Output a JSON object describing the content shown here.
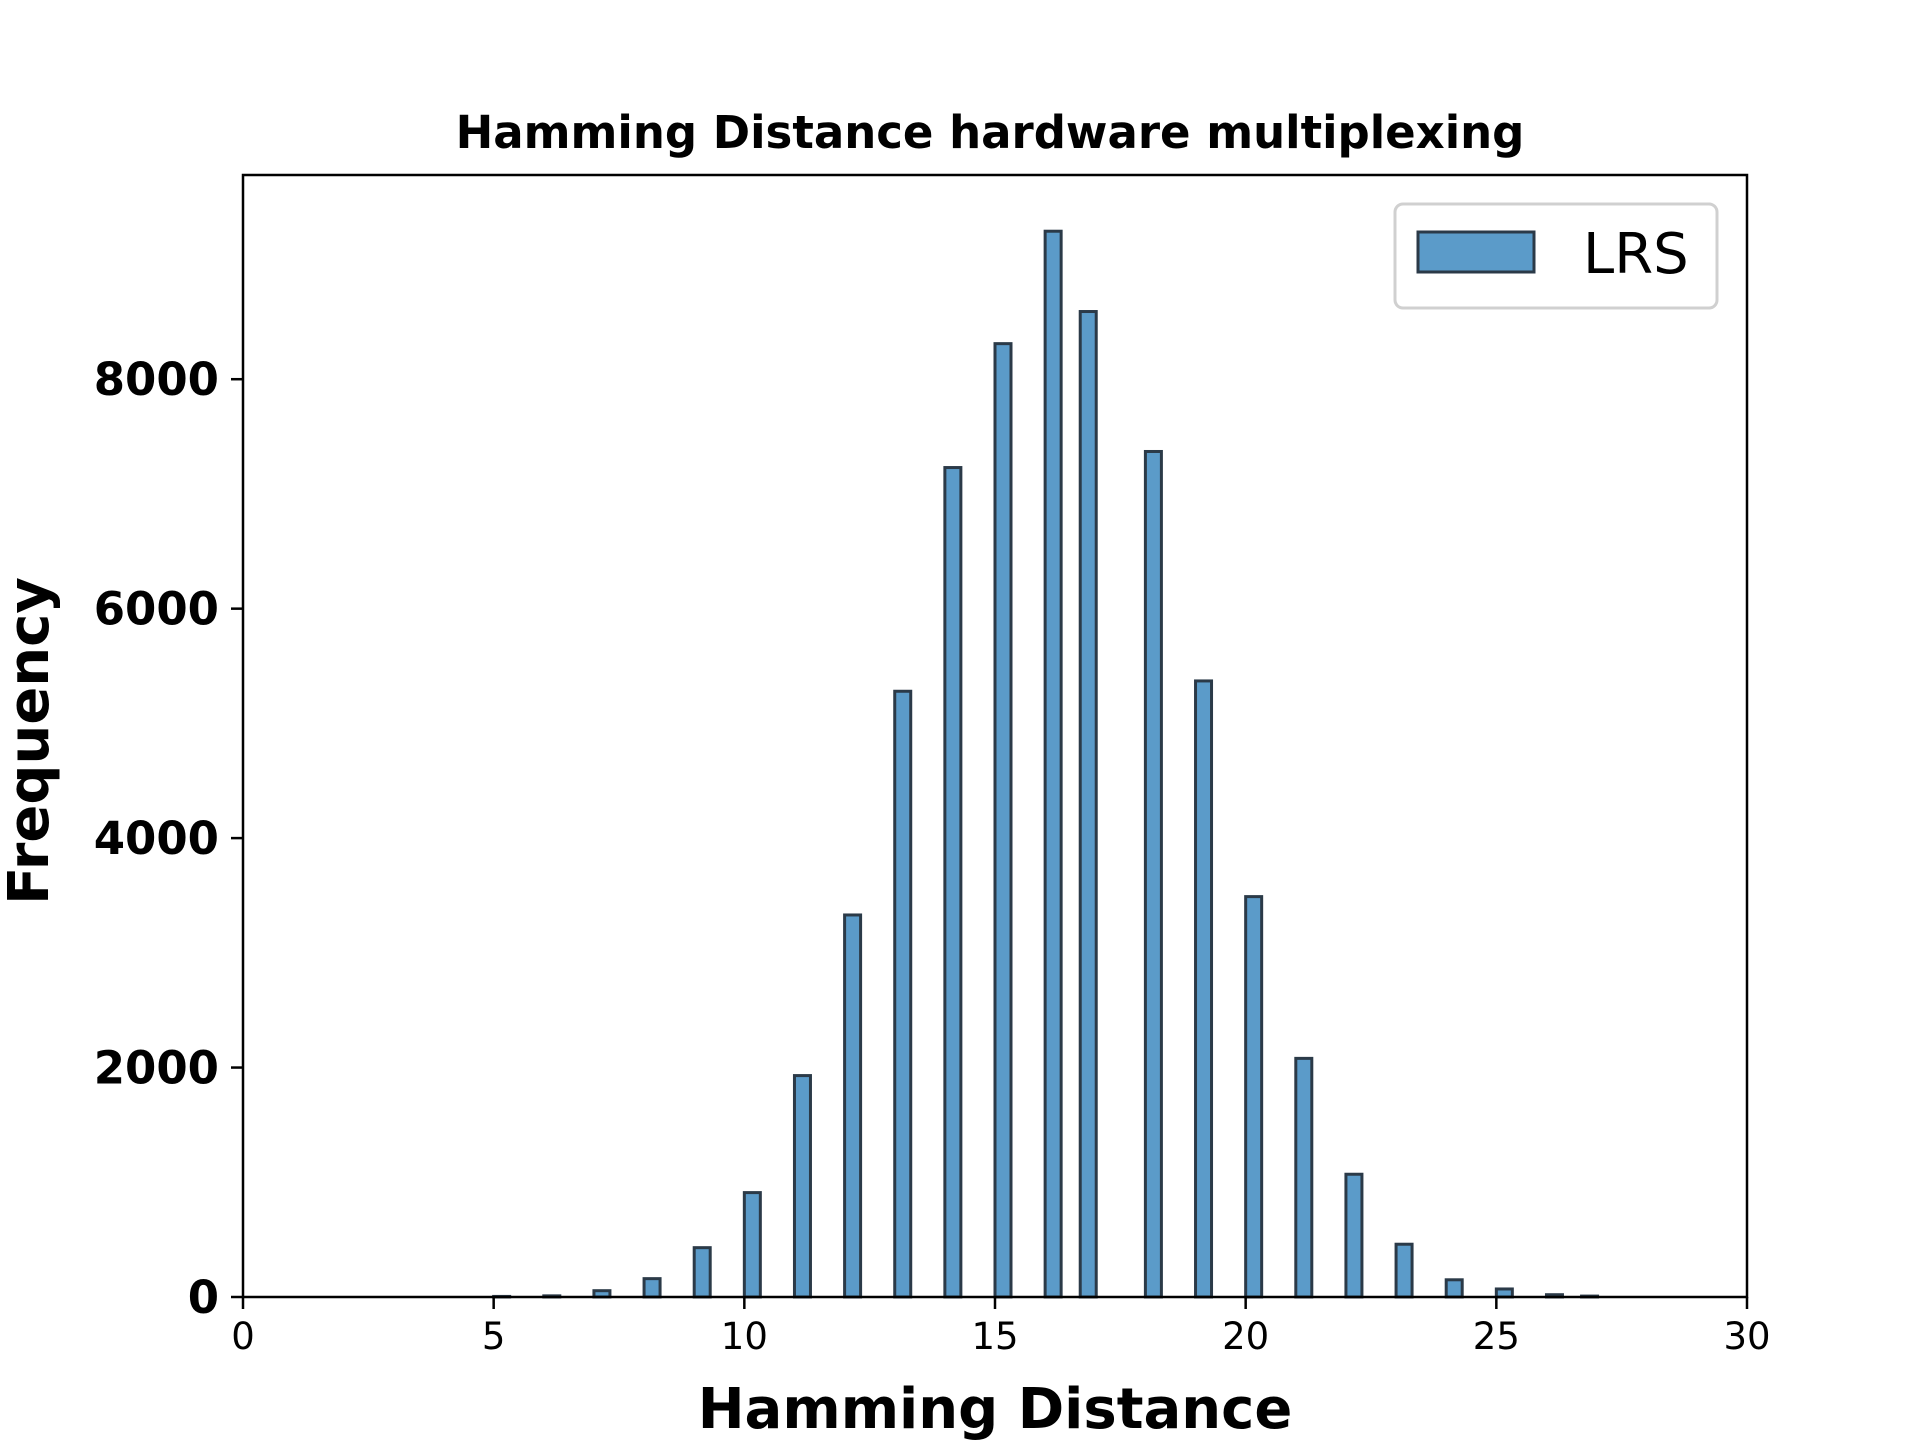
{
  "chart_data": {
    "type": "bar",
    "title": "Hamming Distance hardware multiplexing",
    "xlabel": "Hamming Distance",
    "ylabel": "Frequency",
    "xlim": [
      0,
      30
    ],
    "ylim": [
      0,
      9780
    ],
    "xticks": [
      0,
      5,
      10,
      15,
      20,
      25,
      30
    ],
    "yticks": [
      0,
      2000,
      4000,
      6000,
      8000
    ],
    "grid": false,
    "legend_position": "top-right",
    "series": [
      {
        "name": "LRS",
        "color": "#5b9bc9",
        "edge_color": "#2b3a48",
        "bars": [
          {
            "x": 5,
            "value": 5
          },
          {
            "x": 6,
            "value": 10
          },
          {
            "x": 7,
            "value": 55
          },
          {
            "x": 8,
            "value": 160
          },
          {
            "x": 9,
            "value": 430
          },
          {
            "x": 10,
            "value": 910
          },
          {
            "x": 11,
            "value": 1930
          },
          {
            "x": 12,
            "value": 3330
          },
          {
            "x": 13,
            "value": 5280
          },
          {
            "x": 14,
            "value": 7230
          },
          {
            "x": 15,
            "value": 8310
          },
          {
            "x": 16,
            "value": 9290
          },
          {
            "x": 16.7,
            "value": 8590
          },
          {
            "x": 18,
            "value": 7370
          },
          {
            "x": 19,
            "value": 5370
          },
          {
            "x": 20,
            "value": 3490
          },
          {
            "x": 21,
            "value": 2080
          },
          {
            "x": 22,
            "value": 1070
          },
          {
            "x": 23,
            "value": 460
          },
          {
            "x": 24,
            "value": 150
          },
          {
            "x": 25,
            "value": 70
          },
          {
            "x": 26,
            "value": 20
          },
          {
            "x": 26.7,
            "value": 8
          }
        ]
      }
    ]
  }
}
